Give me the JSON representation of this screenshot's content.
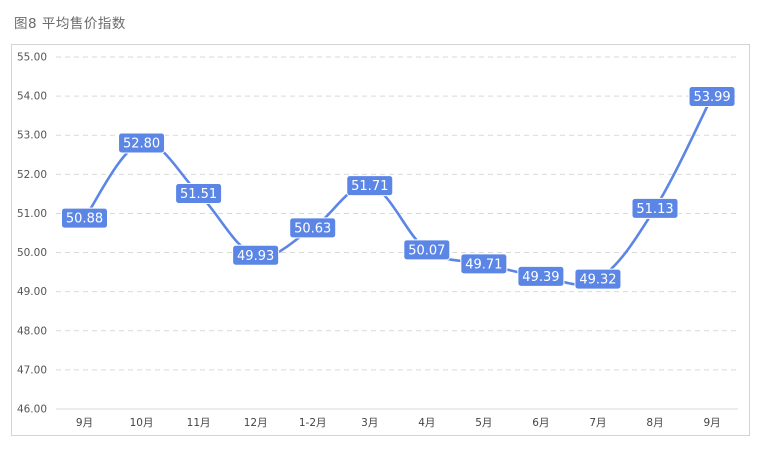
{
  "figure": {
    "title": "图8  平均售价指数"
  },
  "chart_data": {
    "type": "line",
    "categories": [
      "9月",
      "10月",
      "11月",
      "12月",
      "1-2月",
      "3月",
      "4月",
      "5月",
      "6月",
      "7月",
      "8月",
      "9月"
    ],
    "values": [
      50.88,
      52.8,
      51.51,
      49.93,
      50.63,
      51.71,
      50.07,
      49.71,
      49.39,
      49.32,
      51.13,
      53.99
    ],
    "value_labels": [
      "50.88",
      "52.80",
      "51.51",
      "49.93",
      "50.63",
      "51.71",
      "50.07",
      "49.71",
      "49.39",
      "49.32",
      "51.13",
      "53.99"
    ],
    "ylim": [
      46,
      55
    ],
    "yticks": [
      "46.00",
      "47.00",
      "48.00",
      "49.00",
      "50.00",
      "51.00",
      "52.00",
      "53.00",
      "54.00",
      "55.00"
    ],
    "grid": true,
    "line_color": "#5b86e5",
    "label_bg_color": "#5b86e5",
    "xlabel": "",
    "ylabel": ""
  }
}
